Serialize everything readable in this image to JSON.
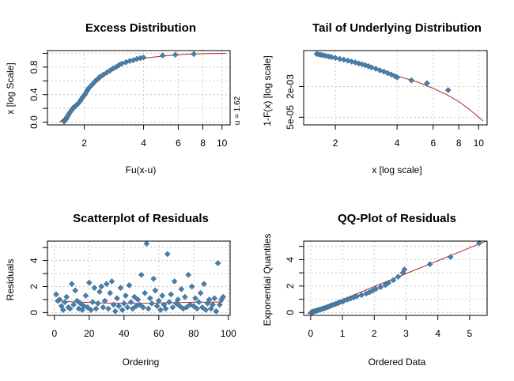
{
  "chart_data": [
    {
      "id": "p1",
      "type": "scatter",
      "title": "Excess Distribution",
      "xlabel": "Fu(x-u)",
      "ylabel": "x [log Scale]",
      "x_scale": "log",
      "xlim": [
        1.3,
        11.0
      ],
      "ylim": [
        -0.04,
        1.04
      ],
      "xticks": [
        2,
        4,
        6,
        8,
        10
      ],
      "xtick_labels": [
        "2",
        "4",
        "6",
        "8",
        "10"
      ],
      "yticks": [
        0.0,
        0.2,
        0.4,
        0.6,
        0.8,
        1.0
      ],
      "ytick_labels": [
        "0.0",
        "",
        "0.4",
        "",
        "0.8",
        ""
      ],
      "grid": true,
      "side_note": "u = 1.62",
      "points": [
        [
          1.58,
          0.01
        ],
        [
          1.6,
          0.03
        ],
        [
          1.62,
          0.05
        ],
        [
          1.63,
          0.07
        ],
        [
          1.65,
          0.09
        ],
        [
          1.67,
          0.12
        ],
        [
          1.7,
          0.15
        ],
        [
          1.73,
          0.18
        ],
        [
          1.76,
          0.21
        ],
        [
          1.8,
          0.23
        ],
        [
          1.83,
          0.25
        ],
        [
          1.86,
          0.27
        ],
        [
          1.9,
          0.3
        ],
        [
          1.93,
          0.33
        ],
        [
          1.96,
          0.36
        ],
        [
          2.0,
          0.39
        ],
        [
          2.03,
          0.42
        ],
        [
          2.07,
          0.46
        ],
        [
          2.1,
          0.49
        ],
        [
          2.15,
          0.52
        ],
        [
          2.2,
          0.55
        ],
        [
          2.25,
          0.58
        ],
        [
          2.3,
          0.61
        ],
        [
          2.35,
          0.63
        ],
        [
          2.4,
          0.66
        ],
        [
          2.5,
          0.69
        ],
        [
          2.6,
          0.72
        ],
        [
          2.7,
          0.75
        ],
        [
          2.8,
          0.78
        ],
        [
          2.9,
          0.8
        ],
        [
          3.0,
          0.83
        ],
        [
          3.1,
          0.85
        ],
        [
          3.25,
          0.87
        ],
        [
          3.4,
          0.89
        ],
        [
          3.55,
          0.9
        ],
        [
          3.7,
          0.92
        ],
        [
          3.85,
          0.93
        ],
        [
          4.0,
          0.94
        ],
        [
          5.0,
          0.97
        ],
        [
          5.8,
          0.98
        ],
        [
          7.2,
          0.99
        ]
      ],
      "fit": [
        [
          1.5,
          0.0
        ],
        [
          1.7,
          0.14
        ],
        [
          2.0,
          0.38
        ],
        [
          2.3,
          0.58
        ],
        [
          2.7,
          0.74
        ],
        [
          3.2,
          0.85
        ],
        [
          4.0,
          0.93
        ],
        [
          5.0,
          0.96
        ],
        [
          6.5,
          0.985
        ],
        [
          8.0,
          0.995
        ],
        [
          10.5,
          1.0
        ]
      ]
    },
    {
      "id": "p2",
      "type": "scatter",
      "title": "Tail of Underlying Distribution",
      "xlabel": "x [log scale]",
      "ylabel": "1-F(x) [log scale]",
      "x_scale": "log",
      "y_scale": "log",
      "xlim": [
        1.4,
        11.0
      ],
      "ylim": [
        2e-05,
        0.15
      ],
      "xticks": [
        2,
        4,
        6,
        8,
        10
      ],
      "xtick_labels": [
        "2",
        "4",
        "6",
        "8",
        "10"
      ],
      "yticks": [
        5e-05,
        0.002
      ],
      "ytick_labels": [
        "5e-05",
        "2e-03"
      ],
      "grid": true,
      "points": [
        [
          1.62,
          0.1
        ],
        [
          1.66,
          0.095
        ],
        [
          1.7,
          0.09
        ],
        [
          1.75,
          0.085
        ],
        [
          1.8,
          0.08
        ],
        [
          1.86,
          0.074
        ],
        [
          1.92,
          0.068
        ],
        [
          2.0,
          0.062
        ],
        [
          2.1,
          0.055
        ],
        [
          2.2,
          0.05
        ],
        [
          2.3,
          0.045
        ],
        [
          2.4,
          0.04
        ],
        [
          2.5,
          0.036
        ],
        [
          2.6,
          0.032
        ],
        [
          2.7,
          0.029
        ],
        [
          2.8,
          0.026
        ],
        [
          2.9,
          0.023
        ],
        [
          3.0,
          0.02
        ],
        [
          3.15,
          0.017
        ],
        [
          3.3,
          0.014
        ],
        [
          3.45,
          0.012
        ],
        [
          3.6,
          0.01
        ],
        [
          3.75,
          0.0085
        ],
        [
          3.9,
          0.007
        ],
        [
          4.0,
          0.006
        ],
        [
          4.7,
          0.0042
        ],
        [
          5.6,
          0.003
        ],
        [
          7.1,
          0.0013
        ]
      ],
      "fit": [
        [
          1.62,
          0.1
        ],
        [
          2.0,
          0.06
        ],
        [
          2.5,
          0.034
        ],
        [
          3.0,
          0.02
        ],
        [
          4.0,
          0.0072
        ],
        [
          5.0,
          0.0035
        ],
        [
          6.0,
          0.0016
        ],
        [
          7.0,
          0.00075
        ],
        [
          8.0,
          0.00033
        ],
        [
          9.0,
          0.00013
        ],
        [
          10.0,
          5e-05
        ],
        [
          10.5,
          3.2e-05
        ]
      ]
    },
    {
      "id": "p3",
      "type": "scatter",
      "title": "Scatterplot of Residuals",
      "xlabel": "Ordering",
      "ylabel": "Residuals",
      "xlim": [
        -4,
        101
      ],
      "ylim": [
        -0.22,
        5.5
      ],
      "xticks": [
        0,
        20,
        40,
        60,
        80,
        100
      ],
      "xtick_labels": [
        "0",
        "20",
        "40",
        "60",
        "80",
        "100"
      ],
      "yticks": [
        0,
        1,
        2,
        3,
        4,
        5
      ],
      "ytick_labels": [
        "0",
        "",
        "2",
        "",
        "4",
        ""
      ],
      "grid": true,
      "points": [
        [
          1,
          1.4
        ],
        [
          2,
          0.9
        ],
        [
          3,
          1.0
        ],
        [
          4,
          0.5
        ],
        [
          5,
          0.2
        ],
        [
          6,
          0.8
        ],
        [
          7,
          1.2
        ],
        [
          8,
          0.4
        ],
        [
          9,
          0.3
        ],
        [
          10,
          2.2
        ],
        [
          11,
          0.6
        ],
        [
          12,
          1.7
        ],
        [
          13,
          0.9
        ],
        [
          14,
          0.3
        ],
        [
          15,
          0.7
        ],
        [
          16,
          0.2
        ],
        [
          17,
          0.5
        ],
        [
          18,
          1.3
        ],
        [
          19,
          0.4
        ],
        [
          20,
          2.3
        ],
        [
          21,
          0.2
        ],
        [
          22,
          0.8
        ],
        [
          23,
          1.9
        ],
        [
          24,
          0.3
        ],
        [
          25,
          0.7
        ],
        [
          26,
          1.6
        ],
        [
          27,
          2.0
        ],
        [
          28,
          0.4
        ],
        [
          29,
          0.9
        ],
        [
          30,
          2.2
        ],
        [
          31,
          0.3
        ],
        [
          32,
          1.5
        ],
        [
          33,
          2.4
        ],
        [
          34,
          0.6
        ],
        [
          35,
          0.1
        ],
        [
          36,
          1.1
        ],
        [
          37,
          0.5
        ],
        [
          38,
          1.9
        ],
        [
          39,
          0.2
        ],
        [
          40,
          0.7
        ],
        [
          41,
          1.3
        ],
        [
          42,
          0.4
        ],
        [
          43,
          2.1
        ],
        [
          44,
          0.8
        ],
        [
          45,
          0.3
        ],
        [
          46,
          1.2
        ],
        [
          47,
          0.5
        ],
        [
          48,
          1.0
        ],
        [
          49,
          0.6
        ],
        [
          50,
          2.9
        ],
        [
          51,
          0.4
        ],
        [
          52,
          1.5
        ],
        [
          53,
          5.3
        ],
        [
          54,
          0.3
        ],
        [
          55,
          1.1
        ],
        [
          56,
          0.7
        ],
        [
          57,
          2.6
        ],
        [
          58,
          1.7
        ],
        [
          59,
          0.5
        ],
        [
          60,
          0.9
        ],
        [
          61,
          0.2
        ],
        [
          62,
          1.3
        ],
        [
          63,
          0.6
        ],
        [
          64,
          0.3
        ],
        [
          65,
          4.5
        ],
        [
          66,
          0.8
        ],
        [
          67,
          1.4
        ],
        [
          68,
          0.4
        ],
        [
          69,
          2.4
        ],
        [
          70,
          0.7
        ],
        [
          71,
          1.0
        ],
        [
          72,
          0.5
        ],
        [
          73,
          1.8
        ],
        [
          74,
          0.3
        ],
        [
          75,
          1.2
        ],
        [
          76,
          0.4
        ],
        [
          77,
          2.9
        ],
        [
          78,
          0.6
        ],
        [
          79,
          2.0
        ],
        [
          80,
          0.5
        ],
        [
          81,
          1.1
        ],
        [
          82,
          0.3
        ],
        [
          83,
          0.8
        ],
        [
          84,
          1.5
        ],
        [
          85,
          0.4
        ],
        [
          86,
          2.2
        ],
        [
          87,
          0.2
        ],
        [
          88,
          0.7
        ],
        [
          89,
          1.0
        ],
        [
          90,
          0.3
        ],
        [
          91,
          0.6
        ],
        [
          92,
          1.1
        ],
        [
          93,
          0.1
        ],
        [
          94,
          3.8
        ],
        [
          95,
          0.6
        ],
        [
          96,
          1.0
        ],
        [
          97,
          1.2
        ]
      ],
      "fit": [
        [
          1,
          1.0
        ],
        [
          5,
          0.85
        ],
        [
          15,
          0.8
        ],
        [
          30,
          0.73
        ],
        [
          45,
          0.7
        ],
        [
          55,
          0.72
        ],
        [
          65,
          0.75
        ],
        [
          80,
          0.79
        ],
        [
          90,
          0.8
        ],
        [
          97,
          0.82
        ]
      ]
    },
    {
      "id": "p4",
      "type": "scatter",
      "title": "QQ-Plot of Residuals",
      "xlabel": "Ordered Data",
      "ylabel": "Exponential Quantiles",
      "xlim": [
        -0.22,
        5.55
      ],
      "ylim": [
        -0.22,
        5.4
      ],
      "xticks": [
        0,
        1,
        2,
        3,
        4,
        5
      ],
      "xtick_labels": [
        "0",
        "1",
        "2",
        "3",
        "4",
        "5"
      ],
      "yticks": [
        0,
        1,
        2,
        3,
        4,
        5
      ],
      "ytick_labels": [
        "0",
        "",
        "2",
        "",
        "4",
        ""
      ],
      "grid": true,
      "points": [
        [
          0.02,
          0.0
        ],
        [
          0.05,
          0.03
        ],
        [
          0.08,
          0.05
        ],
        [
          0.1,
          0.08
        ],
        [
          0.14,
          0.1
        ],
        [
          0.18,
          0.13
        ],
        [
          0.22,
          0.16
        ],
        [
          0.25,
          0.19
        ],
        [
          0.3,
          0.22
        ],
        [
          0.35,
          0.26
        ],
        [
          0.4,
          0.3
        ],
        [
          0.45,
          0.34
        ],
        [
          0.5,
          0.38
        ],
        [
          0.55,
          0.43
        ],
        [
          0.6,
          0.48
        ],
        [
          0.65,
          0.53
        ],
        [
          0.7,
          0.58
        ],
        [
          0.78,
          0.64
        ],
        [
          0.85,
          0.7
        ],
        [
          0.9,
          0.76
        ],
        [
          1.0,
          0.82
        ],
        [
          1.05,
          0.9
        ],
        [
          1.15,
          0.97
        ],
        [
          1.25,
          1.05
        ],
        [
          1.35,
          1.14
        ],
        [
          1.45,
          1.22
        ],
        [
          1.6,
          1.32
        ],
        [
          1.75,
          1.43
        ],
        [
          1.85,
          1.53
        ],
        [
          1.95,
          1.66
        ],
        [
          2.05,
          1.78
        ],
        [
          2.2,
          1.92
        ],
        [
          2.35,
          2.08
        ],
        [
          2.45,
          2.25
        ],
        [
          2.6,
          2.45
        ],
        [
          2.75,
          2.7
        ],
        [
          2.9,
          3.0
        ],
        [
          2.95,
          3.25
        ],
        [
          3.75,
          3.65
        ],
        [
          4.4,
          4.2
        ],
        [
          5.3,
          5.25
        ]
      ],
      "fit": [
        [
          -0.1,
          -0.1
        ],
        [
          5.5,
          5.38
        ]
      ]
    }
  ]
}
